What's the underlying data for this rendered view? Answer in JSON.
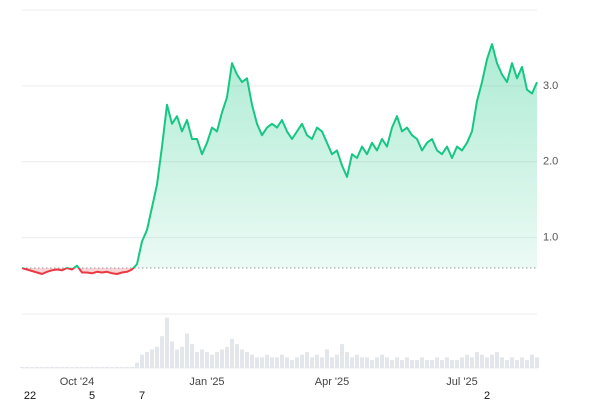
{
  "chart_data": {
    "type": "line",
    "values": [
      0.6,
      0.58,
      0.56,
      0.54,
      0.52,
      0.55,
      0.57,
      0.58,
      0.57,
      0.6,
      0.58,
      0.63,
      0.54,
      0.54,
      0.53,
      0.55,
      0.54,
      0.55,
      0.53,
      0.52,
      0.54,
      0.55,
      0.58,
      0.65,
      0.95,
      1.1,
      1.4,
      1.7,
      2.2,
      2.75,
      2.5,
      2.6,
      2.4,
      2.55,
      2.3,
      2.3,
      2.1,
      2.25,
      2.45,
      2.4,
      2.65,
      2.85,
      3.3,
      3.15,
      3.05,
      3.1,
      2.75,
      2.5,
      2.35,
      2.45,
      2.5,
      2.45,
      2.55,
      2.4,
      2.3,
      2.4,
      2.5,
      2.35,
      2.3,
      2.45,
      2.4,
      2.25,
      2.1,
      2.15,
      1.95,
      1.8,
      2.1,
      2.05,
      2.2,
      2.1,
      2.25,
      2.15,
      2.3,
      2.2,
      2.45,
      2.6,
      2.4,
      2.45,
      2.35,
      2.3,
      2.15,
      2.25,
      2.3,
      2.15,
      2.1,
      2.2,
      2.05,
      2.2,
      2.15,
      2.25,
      2.4,
      2.8,
      3.05,
      3.35,
      3.55,
      3.3,
      3.15,
      3.05,
      3.3,
      3.1,
      3.25,
      2.95,
      2.9,
      3.05
    ],
    "baseline": 0.6,
    "up_color": "#16c784",
    "down_color": "#ea3943",
    "volume": [
      2,
      2,
      2,
      2,
      2,
      2,
      2,
      2,
      2,
      2,
      2,
      2,
      2,
      2,
      2,
      2,
      2,
      2,
      2,
      2,
      2,
      2,
      2,
      10,
      25,
      30,
      35,
      40,
      60,
      95,
      50,
      35,
      40,
      65,
      45,
      30,
      35,
      30,
      25,
      30,
      35,
      40,
      55,
      45,
      35,
      30,
      25,
      20,
      20,
      25,
      20,
      20,
      25,
      20,
      15,
      20,
      25,
      30,
      20,
      25,
      20,
      35,
      20,
      25,
      45,
      30,
      20,
      25,
      20,
      20,
      15,
      20,
      25,
      20,
      15,
      20,
      15,
      20,
      15,
      15,
      20,
      15,
      15,
      20,
      15,
      20,
      15,
      15,
      20,
      25,
      20,
      30,
      25,
      20,
      25,
      30,
      20,
      15,
      20,
      15,
      20,
      15,
      25,
      20
    ],
    "volume_lim": [
      0,
      100
    ],
    "volume_color": "#e3e6ea",
    "ylim": [
      0,
      4.0
    ],
    "yticks": [
      {
        "value": 1,
        "label": "1.0"
      },
      {
        "value": 2,
        "label": "2.0"
      },
      {
        "value": 3,
        "label": "3.0"
      }
    ],
    "xticks": [
      {
        "value": 11,
        "label": "Oct '24"
      },
      {
        "value": 37,
        "label": "Jan '25"
      },
      {
        "value": 62,
        "label": "Apr '25"
      },
      {
        "value": 88,
        "label": "Jul '25"
      }
    ],
    "xticks_secondary": [
      {
        "value": 0,
        "label": "22"
      },
      {
        "value": 14,
        "label": "5"
      },
      {
        "value": 24,
        "label": "7"
      },
      {
        "value": 93,
        "label": "2"
      }
    ],
    "grid": true
  }
}
